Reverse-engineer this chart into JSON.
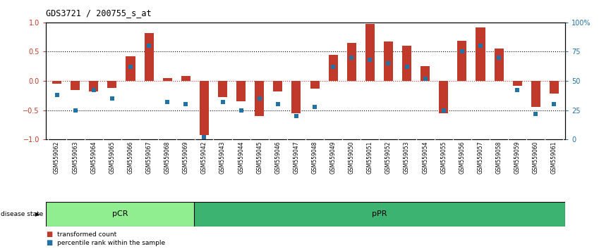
{
  "title": "GDS3721 / 200755_s_at",
  "samples": [
    "GSM559062",
    "GSM559063",
    "GSM559064",
    "GSM559065",
    "GSM559066",
    "GSM559067",
    "GSM559068",
    "GSM559069",
    "GSM559042",
    "GSM559043",
    "GSM559044",
    "GSM559045",
    "GSM559046",
    "GSM559047",
    "GSM559048",
    "GSM559049",
    "GSM559050",
    "GSM559051",
    "GSM559052",
    "GSM559053",
    "GSM559054",
    "GSM559055",
    "GSM559056",
    "GSM559057",
    "GSM559058",
    "GSM559059",
    "GSM559060",
    "GSM559061"
  ],
  "transformed_count": [
    -0.05,
    -0.15,
    -0.18,
    -0.12,
    0.42,
    0.82,
    0.05,
    0.08,
    -0.93,
    -0.28,
    -0.35,
    -0.6,
    -0.18,
    -0.55,
    -0.13,
    0.45,
    0.65,
    0.97,
    0.67,
    0.6,
    0.25,
    -0.55,
    0.68,
    0.92,
    0.55,
    -0.08,
    -0.45,
    -0.22
  ],
  "percentile_rank": [
    38,
    25,
    42,
    35,
    62,
    80,
    32,
    30,
    2,
    32,
    25,
    35,
    30,
    20,
    28,
    62,
    70,
    68,
    65,
    62,
    52,
    25,
    75,
    80,
    70,
    42,
    22,
    30
  ],
  "pCR_count": 8,
  "pPR_count": 20,
  "bar_color": "#c0392b",
  "dot_color": "#2471a3",
  "pCR_color": "#90EE90",
  "pPR_color": "#3CB371",
  "label_color_bar": "#c0392b",
  "label_color_dot": "#2471a3",
  "ylim_left": [
    -1,
    1
  ],
  "ylim_right": [
    0,
    100
  ],
  "yticks_left": [
    -1,
    -0.5,
    0,
    0.5,
    1
  ],
  "yticks_right": [
    0,
    25,
    50,
    75,
    100
  ],
  "dotted_line_color": "black",
  "zero_line_color": "#c0392b",
  "bg_color": "#d3d3d3"
}
